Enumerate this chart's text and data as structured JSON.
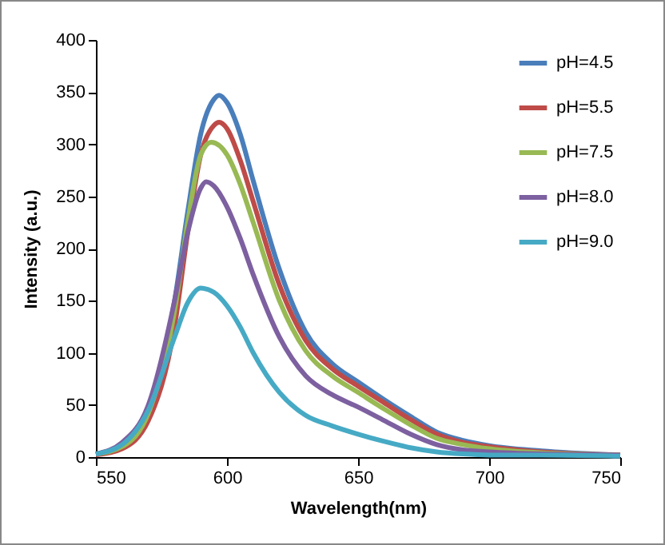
{
  "chart_data": {
    "type": "line",
    "xlabel": "Wavelength(nm)",
    "ylabel": "Intensity (a.u.)",
    "xlim": [
      550,
      750
    ],
    "xticks": [
      550,
      600,
      650,
      700,
      750
    ],
    "ylim": [
      0,
      400
    ],
    "yticks": [
      0,
      50,
      100,
      150,
      200,
      250,
      300,
      350,
      400
    ],
    "grid": false,
    "legend": "top right",
    "marker": "none",
    "line_style": "solid",
    "x": [
      550,
      560,
      570,
      580,
      585,
      590,
      595,
      597,
      600,
      605,
      610,
      620,
      630,
      640,
      650,
      660,
      670,
      680,
      690,
      700,
      720,
      750
    ],
    "series": [
      {
        "name": "pH=4.5",
        "color": "#4a7ebb",
        "values": [
          3,
          12,
          45,
          150,
          235,
          310,
          343,
          347,
          340,
          310,
          265,
          180,
          120,
          90,
          72,
          55,
          39,
          24,
          16,
          11,
          6,
          2
        ]
      },
      {
        "name": "pH=5.5",
        "color": "#be4b48",
        "values": [
          2,
          8,
          35,
          125,
          215,
          290,
          318,
          321,
          315,
          285,
          245,
          165,
          112,
          85,
          68,
          52,
          36,
          22,
          14,
          10,
          5,
          2
        ]
      },
      {
        "name": "pH=7.5",
        "color": "#98b954",
        "x": [
          550,
          560,
          570,
          580,
          585,
          590,
          594,
          600,
          605,
          610,
          620,
          630,
          640,
          650,
          660,
          670,
          680,
          690,
          700,
          720,
          750
        ],
        "values": [
          3,
          10,
          42,
          140,
          225,
          290,
          302,
          290,
          262,
          225,
          150,
          102,
          78,
          62,
          46,
          31,
          18,
          12,
          8,
          4,
          2
        ]
      },
      {
        "name": "pH=8.0",
        "color": "#7d60a0",
        "x": [
          550,
          560,
          570,
          580,
          585,
          590,
          592,
          595,
          600,
          605,
          610,
          620,
          630,
          640,
          650,
          660,
          670,
          680,
          690,
          700,
          720,
          750
        ],
        "values": [
          3,
          14,
          50,
          150,
          215,
          258,
          264,
          260,
          240,
          210,
          175,
          115,
          78,
          60,
          48,
          35,
          22,
          12,
          7,
          5,
          3,
          2
        ]
      },
      {
        "name": "pH=9.0",
        "color": "#46aac5",
        "x": [
          550,
          560,
          570,
          580,
          585,
          590,
          595,
          600,
          605,
          610,
          620,
          630,
          640,
          650,
          660,
          670,
          680,
          690,
          700,
          720,
          750
        ],
        "values": [
          3,
          12,
          45,
          115,
          148,
          162,
          158,
          145,
          125,
          100,
          62,
          40,
          30,
          22,
          15,
          9,
          5,
          3,
          2,
          2,
          1
        ]
      }
    ]
  }
}
